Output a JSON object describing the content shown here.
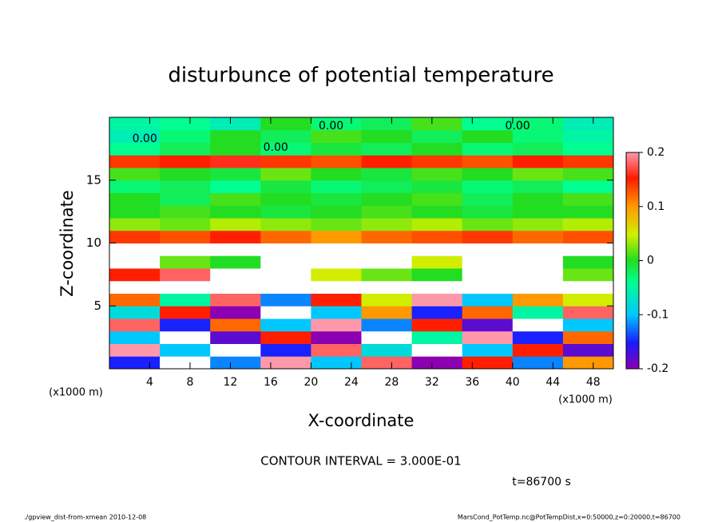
{
  "chart_data": {
    "type": "heatmap",
    "title": "disturbunce of potential temperature",
    "x_label": "X-coordinate",
    "y_label": "Z-coordinate",
    "x_unit": "(x1000 m)",
    "y_unit": "(x1000 m)",
    "xlim": [
      0,
      50
    ],
    "xticks": [
      4,
      8,
      12,
      16,
      20,
      24,
      28,
      32,
      36,
      40,
      44,
      48
    ],
    "ylim": [
      0,
      20
    ],
    "yticks": [
      5,
      10,
      15
    ],
    "x_bins": [
      0,
      5,
      10,
      15,
      20,
      25,
      30,
      35,
      40,
      45,
      50
    ],
    "z_bins": [
      0,
      1,
      2,
      3,
      4,
      5,
      6,
      7,
      8,
      9,
      10,
      11,
      12,
      13,
      14,
      15,
      16,
      17,
      18,
      19,
      20
    ],
    "values": [
      [
        -0.15,
        0.25,
        -0.12,
        0.2,
        -0.1,
        0.18,
        -0.2,
        0.15,
        -0.12,
        0.1
      ],
      [
        0.2,
        -0.1,
        0.25,
        -0.15,
        0.18,
        -0.08,
        0.22,
        -0.1,
        0.15,
        -0.18
      ],
      [
        -0.1,
        0.22,
        -0.18,
        0.15,
        -0.2,
        0.25,
        -0.05,
        0.2,
        -0.15,
        0.12
      ],
      [
        0.18,
        -0.15,
        0.12,
        -0.1,
        0.2,
        -0.12,
        0.15,
        -0.18,
        0.22,
        -0.1
      ],
      [
        -0.08,
        0.15,
        -0.2,
        0.25,
        -0.1,
        0.1,
        -0.15,
        0.12,
        -0.05,
        0.18
      ],
      [
        0.12,
        -0.05,
        0.18,
        -0.12,
        0.15,
        0.05,
        0.2,
        -0.1,
        0.1,
        0.05
      ],
      [
        0.25,
        0.3,
        0.25,
        0.3,
        0.25,
        0.3,
        0.25,
        0.3,
        0.25,
        0.3
      ],
      [
        0.15,
        0.18,
        0.3,
        0.25,
        0.05,
        0.02,
        0.0,
        0.25,
        0.3,
        0.02
      ],
      [
        0.25,
        0.02,
        0.0,
        0.3,
        0.25,
        0.3,
        0.05,
        0.25,
        0.3,
        0.0
      ],
      [
        0.3,
        0.25,
        0.3,
        0.25,
        0.3,
        0.25,
        0.3,
        0.25,
        0.3,
        0.25
      ],
      [
        0.14,
        0.13,
        0.15,
        0.12,
        0.1,
        0.12,
        0.13,
        0.14,
        0.12,
        0.13
      ],
      [
        0.03,
        0.02,
        0.04,
        0.03,
        0.02,
        0.03,
        0.04,
        0.02,
        0.03,
        0.04
      ],
      [
        0.0,
        0.01,
        0.0,
        -0.01,
        0.0,
        0.01,
        0.0,
        -0.01,
        0.0,
        0.0
      ],
      [
        0.0,
        -0.02,
        0.01,
        0.0,
        -0.01,
        0.0,
        0.01,
        -0.02,
        0.0,
        0.01
      ],
      [
        -0.03,
        -0.02,
        -0.04,
        -0.01,
        -0.03,
        -0.02,
        -0.01,
        -0.03,
        -0.02,
        -0.04
      ],
      [
        0.01,
        0.0,
        -0.01,
        0.02,
        0.0,
        -0.01,
        0.01,
        0.0,
        0.02,
        0.01
      ],
      [
        0.14,
        0.15,
        0.16,
        0.14,
        0.13,
        0.15,
        0.14,
        0.13,
        0.15,
        0.14
      ],
      [
        -0.04,
        -0.02,
        0.0,
        -0.03,
        -0.01,
        -0.02,
        0.0,
        -0.03,
        -0.02,
        -0.04
      ],
      [
        -0.06,
        -0.03,
        0.0,
        -0.02,
        0.01,
        0.0,
        -0.02,
        0.0,
        -0.03,
        -0.05
      ],
      [
        -0.05,
        -0.04,
        -0.06,
        0.0,
        -0.03,
        -0.02,
        0.01,
        -0.04,
        -0.03,
        -0.06
      ]
    ],
    "colorlim": [
      -0.2,
      0.2
    ],
    "colorticks": [
      -0.2,
      -0.1,
      0,
      0.1,
      0.2
    ],
    "contour_labels": [
      {
        "text": "0.00",
        "x": 3.5,
        "z": 18.3
      },
      {
        "text": "0.00",
        "x": 22,
        "z": 19.3
      },
      {
        "text": "0.00",
        "x": 40.5,
        "z": 19.3
      },
      {
        "text": "0.00",
        "x": 16.5,
        "z": 17.6
      }
    ],
    "contour_interval": "CONTOUR INTERVAL = 3.000E-01",
    "time_label": "t=86700 s",
    "footer_left": "./gpview_dist-from-xmean  2010-12-08",
    "footer_right": "MarsCond_PotTemp.nc@PotTempDist,x=0:50000,z=0:20000,t=86700"
  }
}
